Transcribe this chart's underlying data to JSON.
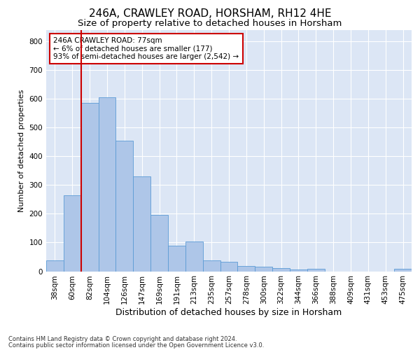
{
  "title1": "246A, CRAWLEY ROAD, HORSHAM, RH12 4HE",
  "title2": "Size of property relative to detached houses in Horsham",
  "xlabel": "Distribution of detached houses by size in Horsham",
  "ylabel": "Number of detached properties",
  "footer1": "Contains HM Land Registry data © Crown copyright and database right 2024.",
  "footer2": "Contains public sector information licensed under the Open Government Licence v3.0.",
  "categories": [
    "38sqm",
    "60sqm",
    "82sqm",
    "104sqm",
    "126sqm",
    "147sqm",
    "169sqm",
    "191sqm",
    "213sqm",
    "235sqm",
    "257sqm",
    "278sqm",
    "300sqm",
    "322sqm",
    "344sqm",
    "366sqm",
    "388sqm",
    "409sqm",
    "431sqm",
    "453sqm",
    "475sqm"
  ],
  "values": [
    38,
    265,
    585,
    605,
    455,
    330,
    195,
    90,
    103,
    38,
    32,
    18,
    17,
    12,
    6,
    8,
    0,
    0,
    0,
    0,
    8
  ],
  "bar_color": "#aec6e8",
  "bar_edge_color": "#5b9bd5",
  "red_line_x": 1.5,
  "annotation_text": "246A CRAWLEY ROAD: 77sqm\n← 6% of detached houses are smaller (177)\n93% of semi-detached houses are larger (2,542) →",
  "annotation_box_color": "#ffffff",
  "annotation_border_color": "#cc0000",
  "ylim": [
    0,
    840
  ],
  "yticks": [
    0,
    100,
    200,
    300,
    400,
    500,
    600,
    700,
    800
  ],
  "background_color": "#dce6f5",
  "grid_color": "#ffffff",
  "title1_fontsize": 11,
  "title2_fontsize": 9.5,
  "xlabel_fontsize": 9,
  "ylabel_fontsize": 8,
  "tick_fontsize": 7.5,
  "annotation_fontsize": 7.5,
  "footer_fontsize": 6
}
